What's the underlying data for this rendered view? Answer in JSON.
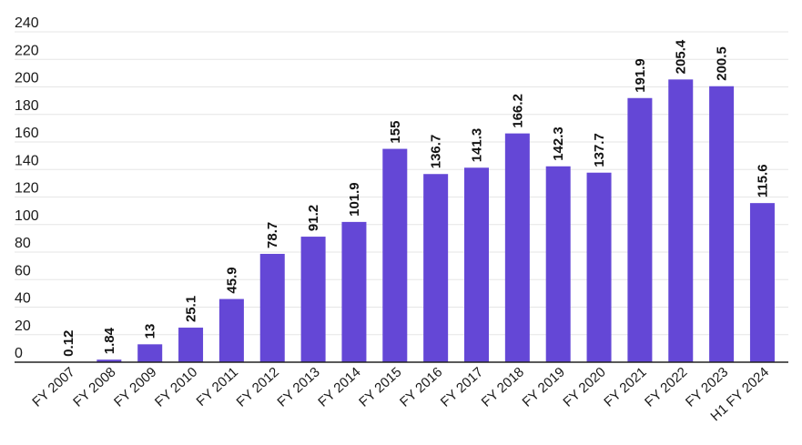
{
  "chart_data": {
    "type": "bar",
    "title": "",
    "xlabel": "",
    "ylabel": "",
    "ylim": [
      0,
      240
    ],
    "yticks": [
      0,
      20,
      40,
      60,
      80,
      100,
      120,
      140,
      160,
      180,
      200,
      220,
      240
    ],
    "grid": true,
    "legend": "none",
    "bar_color": "#6447d6",
    "categories": [
      "FY 2007",
      "FY 2008",
      "FY 2009",
      "FY 2010",
      "FY 2011",
      "FY 2012",
      "FY 2013",
      "FY 2014",
      "FY 2015",
      "FY 2016",
      "FY 2017",
      "FY 2018",
      "FY 2019",
      "FY 2020",
      "FY 2021",
      "FY 2022",
      "FY 2023",
      "H1 FY 2024"
    ],
    "values": [
      0.12,
      1.84,
      13,
      25.1,
      45.9,
      78.7,
      91.2,
      101.9,
      155,
      136.7,
      141.3,
      166.2,
      142.3,
      137.7,
      191.9,
      205.4,
      200.5,
      115.6
    ],
    "value_labels": [
      "0.12",
      "1.84",
      "13",
      "25.1",
      "45.9",
      "78.7",
      "91.2",
      "101.9",
      "155",
      "136.7",
      "141.3",
      "166.2",
      "142.3",
      "137.7",
      "191.9",
      "205.4",
      "200.5",
      "115.6"
    ]
  }
}
